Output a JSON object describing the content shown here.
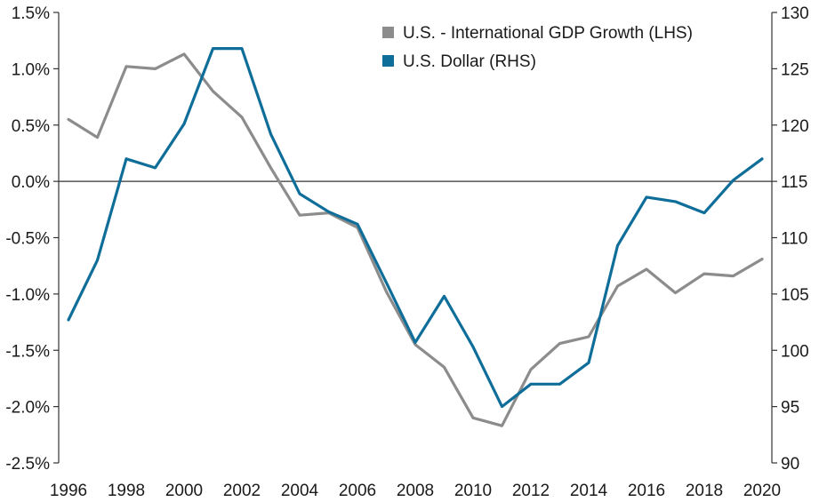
{
  "chart_data": {
    "type": "line",
    "title": "",
    "xlabel": "",
    "x": [
      1996,
      1997,
      1998,
      1999,
      2000,
      2001,
      2002,
      2003,
      2004,
      2005,
      2006,
      2007,
      2008,
      2009,
      2010,
      2011,
      2012,
      2013,
      2014,
      2015,
      2016,
      2017,
      2018,
      2019,
      2020
    ],
    "x_ticks": [
      "1996",
      "1998",
      "2000",
      "2002",
      "2004",
      "2006",
      "2008",
      "2010",
      "2012",
      "2014",
      "2016",
      "2018",
      "2020"
    ],
    "left_axis": {
      "ylim": [
        -2.5,
        1.5
      ],
      "tick_labels": [
        "1.5%",
        "1.0%",
        "0.5%",
        "0.0%",
        "-0.5%",
        "-1.0%",
        "-1.5%",
        "-2.0%",
        "-2.5%"
      ]
    },
    "right_axis": {
      "ylim": [
        90,
        130
      ],
      "tick_labels": [
        "130",
        "125",
        "120",
        "115",
        "110",
        "105",
        "100",
        "95",
        "90"
      ]
    },
    "zero_line": 0.0,
    "legend_position": "top-center",
    "series": [
      {
        "name": "U.S. - International GDP Growth (LHS)",
        "axis": "left",
        "color": "#8c8c8c",
        "values": [
          0.55,
          0.39,
          1.02,
          1.0,
          1.13,
          0.8,
          0.57,
          0.12,
          -0.3,
          -0.28,
          -0.41,
          -0.98,
          -1.45,
          -1.65,
          -2.1,
          -2.17,
          -1.67,
          -1.44,
          -1.38,
          -0.93,
          -0.78,
          -0.99,
          -0.82,
          -0.84,
          -0.69
        ]
      },
      {
        "name": "U.S. Dollar (RHS)",
        "axis": "right",
        "color": "#0e6e99",
        "values": [
          102.7,
          108.0,
          117.0,
          116.2,
          120.1,
          126.8,
          126.8,
          119.2,
          113.9,
          112.3,
          111.2,
          106.0,
          100.7,
          104.8,
          100.3,
          95.0,
          97.0,
          97.0,
          98.9,
          109.3,
          113.6,
          113.2,
          112.2,
          115.1,
          117.0
        ]
      }
    ]
  }
}
